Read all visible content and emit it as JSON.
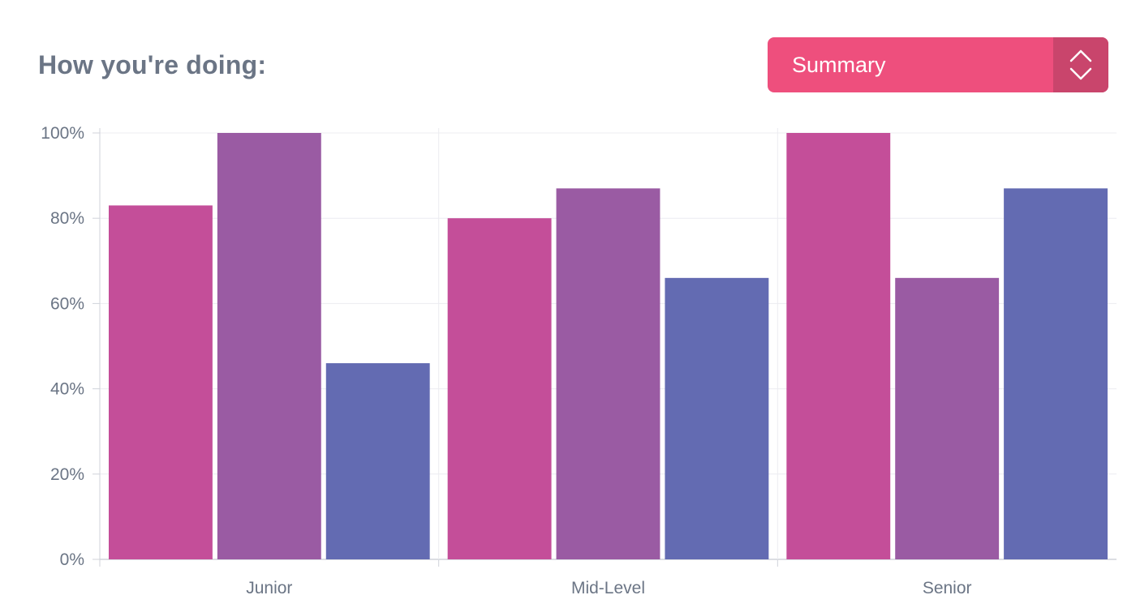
{
  "header": {
    "title": "How you're doing:"
  },
  "selector": {
    "value": "Summary",
    "icon": "chevron-up-down-icon"
  },
  "colors": {
    "background": "#ffffff",
    "text": "#6b7585",
    "selector": "#ee4f7d",
    "selector_handle": "#c9456c",
    "grid": "#ececf1",
    "axis": "#d0d3da"
  },
  "chart_data": {
    "type": "bar",
    "categories": [
      "Junior",
      "Mid-Level",
      "Senior"
    ],
    "series": [
      {
        "color": "#c44e99",
        "values": [
          83,
          80,
          100
        ]
      },
      {
        "color": "#9a5ba3",
        "values": [
          100,
          87,
          66
        ]
      },
      {
        "color": "#636bb2",
        "values": [
          46,
          66,
          87
        ]
      }
    ],
    "yticks": [
      "0%",
      "20%",
      "40%",
      "60%",
      "80%",
      "100%"
    ],
    "ylim": [
      0,
      100
    ],
    "grid": true,
    "legend": "none"
  }
}
